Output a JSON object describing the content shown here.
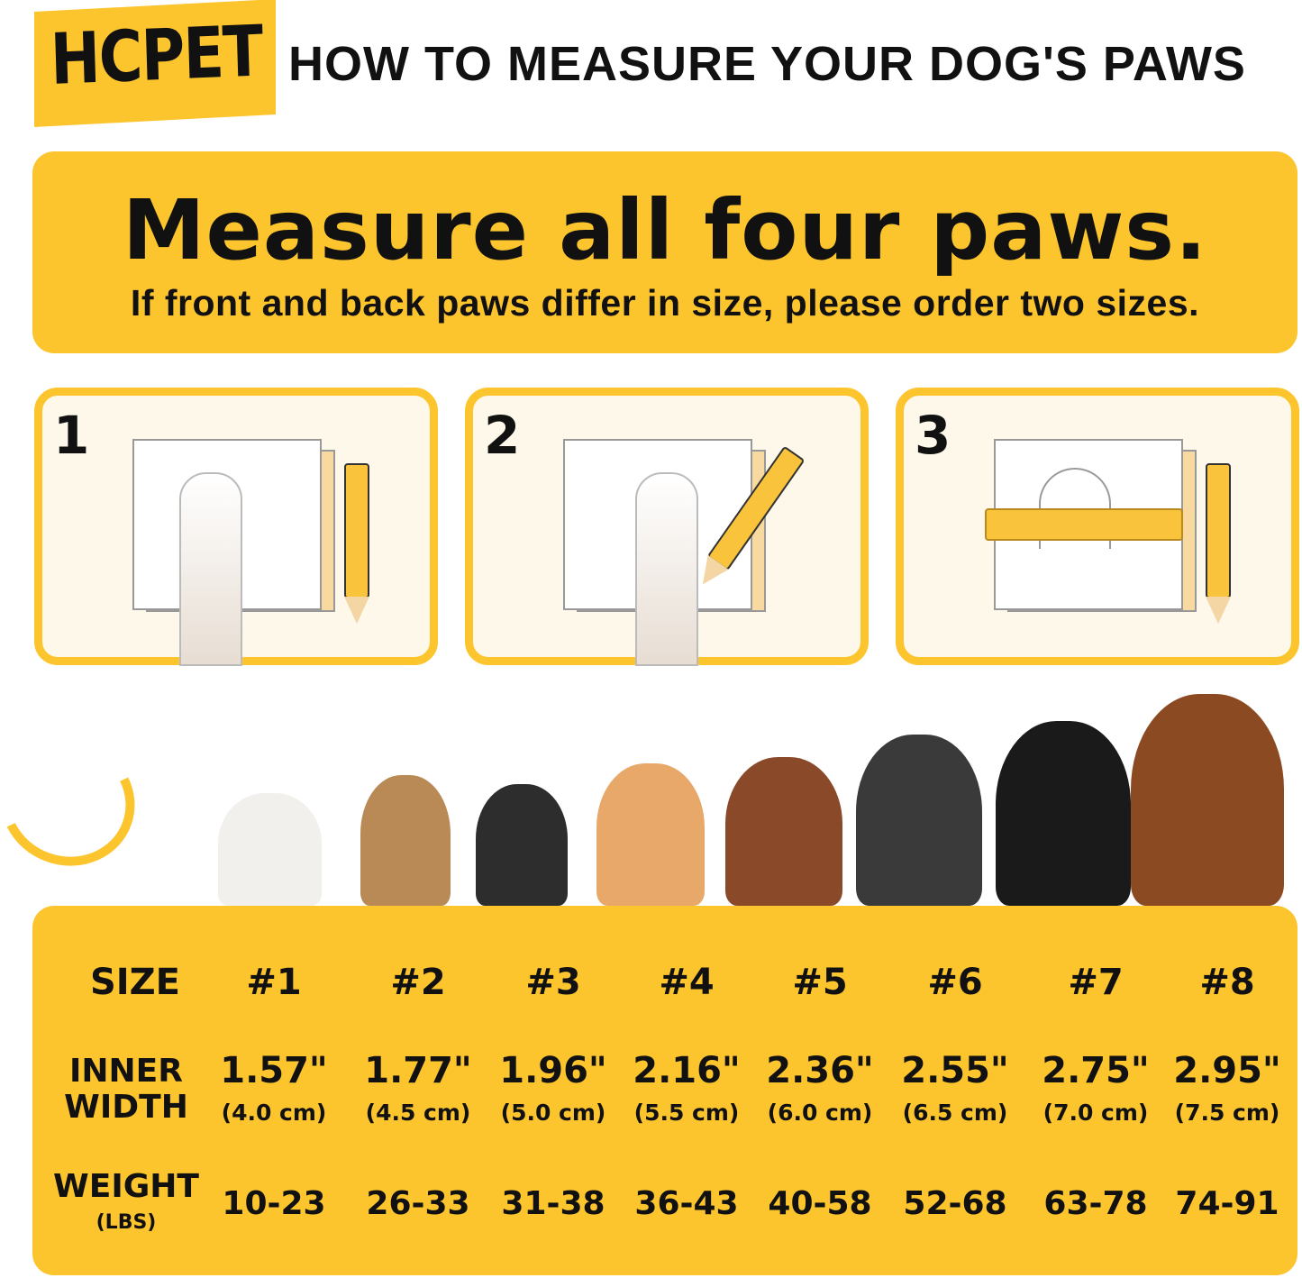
{
  "brand": {
    "logo": "HCPET",
    "color": "#FCC42D"
  },
  "header": {
    "title": "HOW TO MEASURE YOUR DOG'S PAWS"
  },
  "banner": {
    "heading": "Measure all four paws.",
    "subheading": "If front and back paws differ in size, please order two sizes."
  },
  "steps": [
    {
      "number": "1",
      "icon": "paw-on-paper"
    },
    {
      "number": "2",
      "icon": "trace-paw-with-pencil"
    },
    {
      "number": "3",
      "icon": "measure-with-ruler"
    }
  ],
  "table": {
    "size_label": "SIZE",
    "width_label_1": "INNER",
    "width_label_2": "WIDTH",
    "weight_label": "WEIGHT",
    "weight_unit": "(LBS)",
    "columns": [
      {
        "size": "#1",
        "width_in": "1.57\"",
        "width_cm": "(4.0 cm)",
        "weight": "10-23"
      },
      {
        "size": "#2",
        "width_in": "1.77\"",
        "width_cm": "(4.5 cm)",
        "weight": "26-33"
      },
      {
        "size": "#3",
        "width_in": "1.96\"",
        "width_cm": "(5.0 cm)",
        "weight": "31-38"
      },
      {
        "size": "#4",
        "width_in": "2.16\"",
        "width_cm": "(5.5 cm)",
        "weight": "36-43"
      },
      {
        "size": "#5",
        "width_in": "2.36\"",
        "width_cm": "(6.0 cm)",
        "weight": "40-58"
      },
      {
        "size": "#6",
        "width_in": "2.55\"",
        "width_cm": "(6.5 cm)",
        "weight": "52-68"
      },
      {
        "size": "#7",
        "width_in": "2.75\"",
        "width_cm": "(7.0 cm)",
        "weight": "63-78"
      },
      {
        "size": "#8",
        "width_in": "2.95\"",
        "width_cm": "(7.5 cm)",
        "weight": "74-91"
      }
    ]
  }
}
